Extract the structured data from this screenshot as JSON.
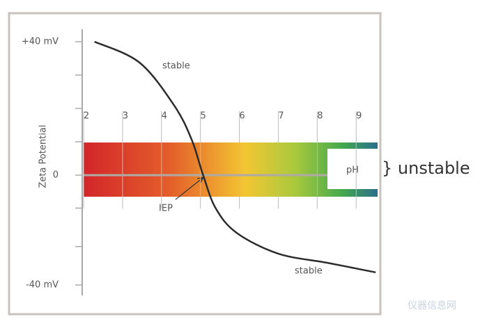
{
  "chart_data": {
    "type": "line",
    "y_label": "Zeta Potential",
    "x": [
      2.28,
      3.43,
      4.32,
      4.77,
      5.07,
      5.39,
      5.93,
      7.0,
      8.25,
      9.5
    ],
    "values": [
      40,
      33.8,
      21,
      10.8,
      0,
      -12,
      -21,
      -28.6,
      -31.9,
      -35.4
    ],
    "color": "#2b2b2b",
    "xlim": [
      2,
      9.55
    ],
    "xticks": [
      2,
      3,
      4,
      5,
      6,
      7,
      8,
      9
    ],
    "ylim": [
      -40,
      40
    ],
    "yticks": [
      {
        "value": 40,
        "label": "+40 mV"
      },
      0,
      {
        "value": -40,
        "label": "-40 mV"
      }
    ],
    "minor_yticks": [
      30,
      20,
      10,
      -12,
      -26
    ],
    "grid": true,
    "annotations": {
      "stable_top": "stable",
      "stable_bottom": "stable",
      "iep": "IEP",
      "ph": "pH",
      "unstable": "} unstable"
    },
    "watermark": "仪器信息网"
  }
}
